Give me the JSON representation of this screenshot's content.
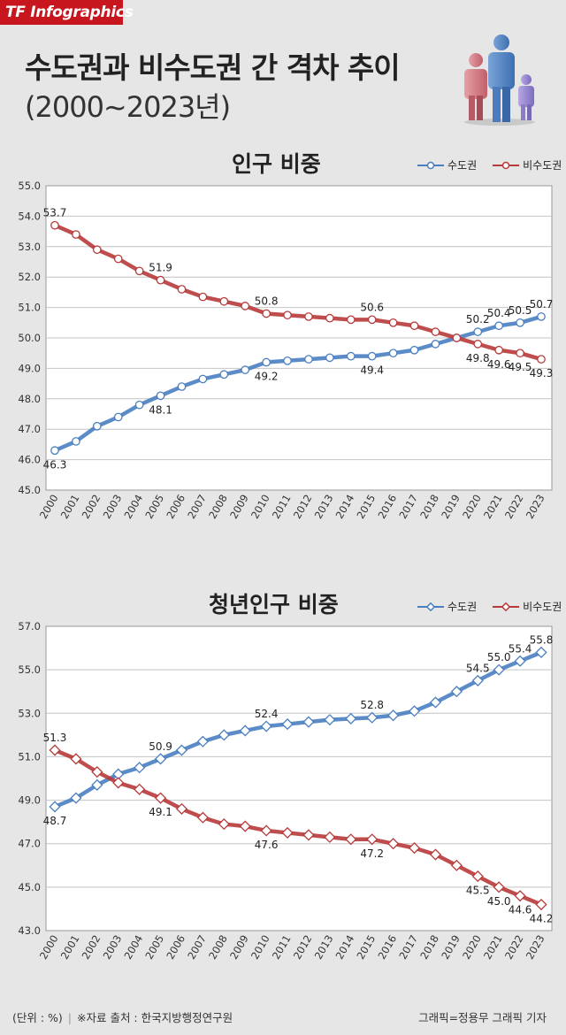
{
  "brand": "TF Infographics",
  "title": "수도권과 비수도권 간 격차 추이",
  "subtitle": "(2000~2023년)",
  "colors": {
    "capital": "#4a7fc1",
    "non_capital": "#b83a3a"
  },
  "chart_data": [
    {
      "type": "line",
      "title": "인구 비중",
      "marker": "circle",
      "categories": [
        "2000",
        "2001",
        "2002",
        "2003",
        "2004",
        "2005",
        "2006",
        "2007",
        "2008",
        "2009",
        "2010",
        "2011",
        "2012",
        "2013",
        "2014",
        "2015",
        "2016",
        "2017",
        "2018",
        "2019",
        "2020",
        "2021",
        "2022",
        "2023"
      ],
      "ylim": [
        45.0,
        55.0
      ],
      "yticks": [
        "45.0",
        "46.0",
        "47.0",
        "48.0",
        "49.0",
        "50.0",
        "51.0",
        "52.0",
        "53.0",
        "54.0",
        "55.0"
      ],
      "legend": [
        "수도권",
        "비수도권"
      ],
      "series": [
        {
          "name": "수도권",
          "values": [
            46.3,
            46.6,
            47.1,
            47.4,
            47.8,
            48.1,
            48.4,
            48.65,
            48.8,
            48.95,
            49.2,
            49.25,
            49.3,
            49.35,
            49.4,
            49.4,
            49.5,
            49.6,
            49.8,
            50.0,
            50.2,
            50.4,
            50.5,
            50.7
          ]
        },
        {
          "name": "비수도권",
          "values": [
            53.7,
            53.4,
            52.9,
            52.6,
            52.2,
            51.9,
            51.6,
            51.35,
            51.2,
            51.05,
            50.8,
            50.75,
            50.7,
            50.65,
            50.6,
            50.6,
            50.5,
            50.4,
            50.2,
            50.0,
            49.8,
            49.6,
            49.5,
            49.3
          ]
        }
      ],
      "labels": [
        {
          "series": 0,
          "index": 0,
          "text": "46.3",
          "pos": "below"
        },
        {
          "series": 0,
          "index": 5,
          "text": "48.1",
          "pos": "below"
        },
        {
          "series": 0,
          "index": 10,
          "text": "49.2",
          "pos": "below"
        },
        {
          "series": 0,
          "index": 15,
          "text": "49.4",
          "pos": "below"
        },
        {
          "series": 0,
          "index": 20,
          "text": "50.2",
          "pos": "above"
        },
        {
          "series": 0,
          "index": 21,
          "text": "50.4",
          "pos": "above"
        },
        {
          "series": 0,
          "index": 22,
          "text": "50.5",
          "pos": "above"
        },
        {
          "series": 0,
          "index": 23,
          "text": "50.7",
          "pos": "above"
        },
        {
          "series": 1,
          "index": 0,
          "text": "53.7",
          "pos": "above"
        },
        {
          "series": 1,
          "index": 5,
          "text": "51.9",
          "pos": "above"
        },
        {
          "series": 1,
          "index": 10,
          "text": "50.8",
          "pos": "above"
        },
        {
          "series": 1,
          "index": 15,
          "text": "50.6",
          "pos": "above"
        },
        {
          "series": 1,
          "index": 20,
          "text": "49.8",
          "pos": "below"
        },
        {
          "series": 1,
          "index": 21,
          "text": "49.6",
          "pos": "below"
        },
        {
          "series": 1,
          "index": 22,
          "text": "49.5",
          "pos": "below"
        },
        {
          "series": 1,
          "index": 23,
          "text": "49.3",
          "pos": "below"
        }
      ]
    },
    {
      "type": "line",
      "title": "청년인구 비중",
      "marker": "diamond",
      "categories": [
        "2000",
        "2001",
        "2002",
        "2003",
        "2004",
        "2005",
        "2006",
        "2007",
        "2008",
        "2009",
        "2010",
        "2011",
        "2012",
        "2013",
        "2014",
        "2015",
        "2016",
        "2017",
        "2018",
        "2019",
        "2020",
        "2021",
        "2022",
        "2023"
      ],
      "ylim": [
        43.0,
        57.0
      ],
      "yticks": [
        "43.0",
        "45.0",
        "47.0",
        "49.0",
        "51.0",
        "53.0",
        "55.0",
        "57.0"
      ],
      "legend": [
        "수도권",
        "비수도권"
      ],
      "series": [
        {
          "name": "수도권",
          "values": [
            48.7,
            49.1,
            49.7,
            50.2,
            50.5,
            50.9,
            51.3,
            51.7,
            52.0,
            52.2,
            52.4,
            52.5,
            52.6,
            52.7,
            52.75,
            52.8,
            52.9,
            53.1,
            53.5,
            54.0,
            54.5,
            55.0,
            55.4,
            55.8
          ]
        },
        {
          "name": "비수도권",
          "values": [
            51.3,
            50.9,
            50.3,
            49.8,
            49.5,
            49.1,
            48.6,
            48.2,
            47.9,
            47.8,
            47.6,
            47.5,
            47.4,
            47.3,
            47.2,
            47.2,
            47.0,
            46.8,
            46.5,
            46.0,
            45.5,
            45.0,
            44.6,
            44.2
          ]
        }
      ],
      "labels": [
        {
          "series": 0,
          "index": 0,
          "text": "48.7",
          "pos": "below"
        },
        {
          "series": 0,
          "index": 5,
          "text": "50.9",
          "pos": "above"
        },
        {
          "series": 0,
          "index": 10,
          "text": "52.4",
          "pos": "above"
        },
        {
          "series": 0,
          "index": 15,
          "text": "52.8",
          "pos": "above"
        },
        {
          "series": 0,
          "index": 20,
          "text": "54.5",
          "pos": "above"
        },
        {
          "series": 0,
          "index": 21,
          "text": "55.0",
          "pos": "above"
        },
        {
          "series": 0,
          "index": 22,
          "text": "55.4",
          "pos": "above"
        },
        {
          "series": 0,
          "index": 23,
          "text": "55.8",
          "pos": "above"
        },
        {
          "series": 1,
          "index": 0,
          "text": "51.3",
          "pos": "above"
        },
        {
          "series": 1,
          "index": 5,
          "text": "49.1",
          "pos": "below"
        },
        {
          "series": 1,
          "index": 10,
          "text": "47.6",
          "pos": "below"
        },
        {
          "series": 1,
          "index": 15,
          "text": "47.2",
          "pos": "below"
        },
        {
          "series": 1,
          "index": 20,
          "text": "45.5",
          "pos": "below"
        },
        {
          "series": 1,
          "index": 21,
          "text": "45.0",
          "pos": "below"
        },
        {
          "series": 1,
          "index": 22,
          "text": "44.6",
          "pos": "below"
        },
        {
          "series": 1,
          "index": 23,
          "text": "44.2",
          "pos": "below"
        }
      ]
    }
  ],
  "footer": {
    "unit": "(단위 : %)",
    "source": "※자료 출처 : 한국지방행정연구원",
    "credit": "그래픽=정용무 그래픽 기자"
  }
}
